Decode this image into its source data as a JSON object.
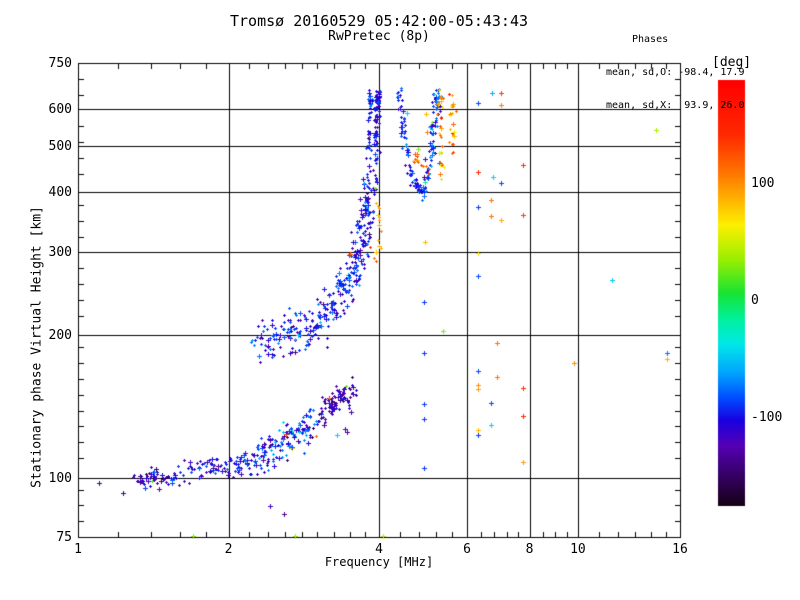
{
  "header": {
    "title": "Tromsø 20160529 05:42:00-05:43:43",
    "subtitle": "RwPretec (8p)",
    "stats_title": "Phases",
    "stats_line_o": "mean, sd,O: -98.4, 17.9",
    "stats_line_x": "mean, sd,X:  93.9, 26.0"
  },
  "chart_data": {
    "type": "scatter",
    "title": "Tromsø 20160529 05:42:00-05:43:43",
    "subtitle": "RwPretec (8p)",
    "xlabel": "Frequency [MHz]",
    "ylabel": "Stationary phase Virtual Height [km]",
    "grid": true,
    "x_axis": {
      "scale": "log",
      "min": 1,
      "max": 16,
      "major_ticks": [
        1,
        2,
        4,
        6,
        8,
        10,
        16
      ],
      "minor_ticks": [
        1.2,
        1.4,
        1.6,
        1.8,
        2.2,
        2.4,
        2.6,
        2.8,
        3,
        3.25,
        3.5,
        3.75,
        4.4,
        4.8,
        5.2,
        5.6,
        6.4,
        6.8,
        7.2,
        7.6,
        8.5,
        9,
        9.5,
        11,
        12,
        13,
        14,
        15
      ],
      "grid_at": [
        2,
        4,
        6,
        8,
        10
      ]
    },
    "y_axis": {
      "scale": "log",
      "min": 75,
      "max": 750,
      "major_ticks": [
        75,
        100,
        200,
        300,
        400,
        500,
        600,
        750
      ],
      "minor_divisions": 30,
      "grid_at": [
        100,
        200,
        300,
        400,
        500,
        600
      ]
    },
    "colorbar": {
      "label": "[deg]",
      "unit": "deg",
      "tick_values": [
        100,
        0,
        -100
      ],
      "vmax": 188,
      "vmin": -175,
      "stops": [
        [
          0.0,
          "#ff0000"
        ],
        [
          0.13,
          "#ff2a00"
        ],
        [
          0.22,
          "#ff7700"
        ],
        [
          0.28,
          "#ffb300"
        ],
        [
          0.34,
          "#fdf000"
        ],
        [
          0.42,
          "#9cee00"
        ],
        [
          0.5,
          "#18e432"
        ],
        [
          0.56,
          "#00f09a"
        ],
        [
          0.62,
          "#00e8e8"
        ],
        [
          0.69,
          "#00a2ff"
        ],
        [
          0.75,
          "#0048ff"
        ],
        [
          0.8,
          "#1a00e0"
        ],
        [
          0.86,
          "#5500b4"
        ],
        [
          0.93,
          "#350063"
        ],
        [
          1.0,
          "#160016"
        ]
      ]
    },
    "traces": [
      {
        "name": "E-region ledge 1.3-1.55 MHz ~100 km",
        "n": 60,
        "path": [
          [
            1.3,
            100
          ],
          [
            1.36,
            100
          ],
          [
            1.42,
            101
          ],
          [
            1.5,
            99
          ],
          [
            1.56,
            100
          ]
        ],
        "f_jitter": 0.012,
        "h_jitter": 0.02,
        "phase_mean": -115,
        "phase_sd": 18,
        "outlier_rate": 0.01
      },
      {
        "name": "E-region 1.6-2.2 MHz",
        "n": 90,
        "path": [
          [
            1.6,
            102
          ],
          [
            1.72,
            104
          ],
          [
            1.85,
            106
          ],
          [
            1.98,
            106
          ],
          [
            2.1,
            107
          ],
          [
            2.22,
            109
          ]
        ],
        "f_jitter": 0.015,
        "h_jitter": 0.025,
        "phase_mean": -105,
        "phase_sd": 18,
        "outlier_rate": 0.02
      },
      {
        "name": "E-region 2.25-3.0 MHz rising",
        "n": 140,
        "path": [
          [
            2.25,
            110
          ],
          [
            2.4,
            113
          ],
          [
            2.55,
            117
          ],
          [
            2.7,
            122
          ],
          [
            2.85,
            128
          ],
          [
            3.0,
            134
          ]
        ],
        "f_jitter": 0.015,
        "h_jitter": 0.045,
        "phase_mean": -95,
        "phase_sd": 25,
        "outlier_rate": 0.04
      },
      {
        "name": "E-region violet tail 3.0-3.55 MHz",
        "n": 85,
        "path": [
          [
            3.02,
            136
          ],
          [
            3.15,
            141
          ],
          [
            3.28,
            145
          ],
          [
            3.42,
            149
          ],
          [
            3.55,
            152
          ]
        ],
        "f_jitter": 0.012,
        "h_jitter": 0.035,
        "phase_mean": -125,
        "phase_sd": 15,
        "outlier_rate": 0.03
      },
      {
        "name": "F-region O-mode trace 2.3-3.8 MHz",
        "n": 330,
        "path": [
          [
            2.28,
            196
          ],
          [
            2.42,
            196
          ],
          [
            2.58,
            199
          ],
          [
            2.72,
            202
          ],
          [
            2.86,
            207
          ],
          [
            3.0,
            213
          ],
          [
            3.12,
            221
          ],
          [
            3.24,
            231
          ],
          [
            3.36,
            244
          ],
          [
            3.46,
            259
          ],
          [
            3.56,
            277
          ],
          [
            3.64,
            298
          ],
          [
            3.71,
            322
          ],
          [
            3.76,
            350
          ],
          [
            3.79,
            375
          ],
          [
            3.81,
            395
          ]
        ],
        "f_jitter": 0.022,
        "h_jitter": 0.05,
        "phase_mean": -98,
        "phase_sd": 18,
        "outlier_rate": 0.02
      },
      {
        "name": "O-mode asymptote strand A ~3.8 MHz",
        "n": 55,
        "path": [
          [
            3.8,
            400
          ],
          [
            3.8,
            460
          ],
          [
            3.81,
            520
          ],
          [
            3.82,
            575
          ],
          [
            3.83,
            620
          ],
          [
            3.84,
            645
          ]
        ],
        "f_jitter": 0.006,
        "h_jitter": 0.018,
        "phase_mean": -98,
        "phase_sd": 15,
        "outlier_rate": 0.02
      },
      {
        "name": "O-mode asymptote strand B ~3.95 MHz",
        "n": 75,
        "path": [
          [
            3.93,
            405
          ],
          [
            3.94,
            470
          ],
          [
            3.95,
            530
          ],
          [
            3.96,
            585
          ],
          [
            3.97,
            625
          ],
          [
            3.98,
            650
          ]
        ],
        "f_jitter": 0.007,
        "h_jitter": 0.018,
        "phase_mean": -100,
        "phase_sd": 15,
        "outlier_rate": 0.03
      },
      {
        "name": "X-mode cusp descending 4.4-5.0 MHz",
        "n": 85,
        "path": [
          [
            4.38,
            655
          ],
          [
            4.42,
            600
          ],
          [
            4.47,
            545
          ],
          [
            4.53,
            495
          ],
          [
            4.6,
            452
          ],
          [
            4.68,
            424
          ],
          [
            4.78,
            408
          ],
          [
            4.9,
            405
          ],
          [
            5.0,
            418
          ]
        ],
        "f_jitter": 0.008,
        "h_jitter": 0.02,
        "phase_mean": -95,
        "phase_sd": 15,
        "outlier_rate": 0.03
      },
      {
        "name": "X-mode cusp ascending 5.0-5.3 MHz",
        "n": 75,
        "path": [
          [
            4.98,
            428
          ],
          [
            5.04,
            465
          ],
          [
            5.1,
            515
          ],
          [
            5.16,
            565
          ],
          [
            5.21,
            615
          ],
          [
            5.26,
            650
          ]
        ],
        "f_jitter": 0.009,
        "h_jitter": 0.02,
        "phase_mean": -92,
        "phase_sd": 18,
        "outlier_rate": 0.05
      },
      {
        "name": "X-polarization yellow column ~5.3 MHz",
        "n": 30,
        "path": [
          [
            5.3,
            648
          ],
          [
            5.32,
            600
          ],
          [
            5.3,
            550
          ],
          [
            5.33,
            500
          ],
          [
            5.31,
            460
          ],
          [
            5.32,
            440
          ]
        ],
        "f_jitter": 0.008,
        "h_jitter": 0.018,
        "phase_mean": 95,
        "phase_sd": 24,
        "outlier_rate": 0.05
      },
      {
        "name": "X-polarization yellow column ~5.6 MHz",
        "n": 22,
        "path": [
          [
            5.6,
            645
          ],
          [
            5.62,
            605
          ],
          [
            5.58,
            565
          ],
          [
            5.62,
            525
          ],
          [
            5.6,
            500
          ]
        ],
        "f_jitter": 0.008,
        "h_jitter": 0.018,
        "phase_mean": 102,
        "phase_sd": 26,
        "outlier_rate": 0.05
      },
      {
        "name": "orange cluster at cusp bottom 4.7-5.0 MHz",
        "n": 14,
        "path": [
          [
            4.68,
            478
          ],
          [
            4.8,
            466
          ],
          [
            4.92,
            456
          ],
          [
            5.02,
            450
          ]
        ],
        "f_jitter": 0.01,
        "h_jitter": 0.015,
        "phase_mean": 108,
        "phase_sd": 22,
        "outlier_rate": 0.0
      },
      {
        "name": "yellow column ~4.0 MHz 280-385 km",
        "n": 14,
        "path": [
          [
            3.97,
            383
          ],
          [
            3.99,
            358
          ],
          [
            4.0,
            333
          ],
          [
            3.98,
            310
          ],
          [
            3.94,
            293
          ],
          [
            3.9,
            282
          ]
        ],
        "f_jitter": 0.005,
        "h_jitter": 0.012,
        "phase_mean": 95,
        "phase_sd": 14,
        "outlier_rate": 0.0
      }
    ],
    "points": [
      [
        6.73,
        648,
        -60
      ],
      [
        7.0,
        647,
        135
      ],
      [
        6.3,
        617,
        -85
      ],
      [
        7.0,
        612,
        105
      ],
      [
        14.3,
        541,
        40
      ],
      [
        7.75,
        457,
        140
      ],
      [
        6.3,
        442,
        145
      ],
      [
        6.75,
        431,
        -45
      ],
      [
        7.0,
        419,
        -85
      ],
      [
        6.7,
        385,
        110
      ],
      [
        6.3,
        373,
        -90
      ],
      [
        6.7,
        356,
        110
      ],
      [
        7.0,
        350,
        90
      ],
      [
        7.75,
        358,
        135
      ],
      [
        6.3,
        298,
        70
      ],
      [
        6.3,
        266,
        -85
      ],
      [
        11.7,
        261,
        -50
      ],
      [
        5.37,
        204,
        30
      ],
      [
        4.93,
        235,
        -90
      ],
      [
        4.93,
        183,
        -90
      ],
      [
        6.9,
        192,
        110
      ],
      [
        6.3,
        168,
        -85
      ],
      [
        6.9,
        163,
        110
      ],
      [
        6.3,
        157,
        100
      ],
      [
        6.3,
        154,
        95
      ],
      [
        7.75,
        155,
        140
      ],
      [
        4.93,
        143,
        -90
      ],
      [
        6.7,
        144,
        -85
      ],
      [
        4.93,
        133,
        -90
      ],
      [
        7.75,
        135,
        145
      ],
      [
        6.7,
        129,
        -45
      ],
      [
        6.3,
        126,
        85
      ],
      [
        6.3,
        123,
        -88
      ],
      [
        7.75,
        108,
        95
      ],
      [
        4.93,
        105,
        -90
      ],
      [
        9.8,
        175,
        100
      ],
      [
        15.1,
        183,
        -75
      ],
      [
        15.1,
        178,
        88
      ],
      [
        2.58,
        84,
        -135
      ],
      [
        1.1,
        97.5,
        -135
      ],
      [
        1.23,
        93,
        -138
      ],
      [
        1.7,
        75.3,
        30
      ],
      [
        2.72,
        75.2,
        35
      ],
      [
        4.07,
        75.2,
        40
      ],
      [
        4.95,
        315,
        85
      ],
      [
        3.5,
        296,
        125
      ],
      [
        2.75,
        200,
        -45
      ],
      [
        4.56,
        587,
        -45
      ],
      [
        4.97,
        584,
        85
      ],
      [
        5.0,
        537,
        105
      ],
      [
        4.79,
        495,
        30
      ],
      [
        2.42,
        87,
        -120
      ],
      [
        3.3,
        123,
        -45
      ],
      [
        3.45,
        125,
        -128
      ],
      [
        3.42,
        127,
        -130
      ]
    ]
  }
}
